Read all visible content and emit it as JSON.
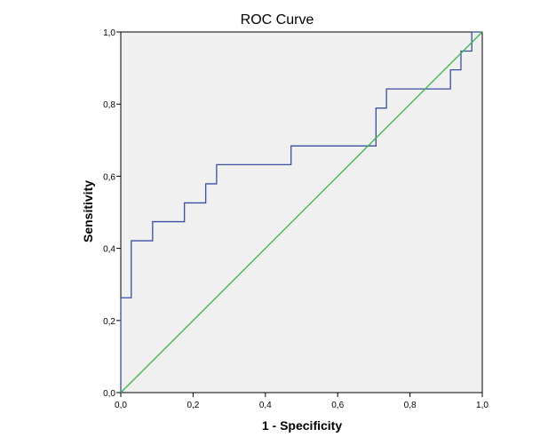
{
  "chart_data": {
    "type": "line",
    "title": "ROC Curve",
    "xlabel": "1 - Specificity",
    "ylabel": "Sensitivity",
    "xlim": [
      0,
      1
    ],
    "ylim": [
      0,
      1
    ],
    "x_ticks": [
      "0,0",
      "0,2",
      "0,4",
      "0,6",
      "0,8",
      "1,0"
    ],
    "y_ticks": [
      "0,0",
      "0,2",
      "0,4",
      "0,6",
      "0,8",
      "1,0"
    ],
    "grid": false,
    "legend": "none",
    "plot_background": "#f0f0f0",
    "series": [
      {
        "style": "step",
        "color": "#3a4fa0",
        "points": [
          [
            0.0,
            0.0
          ],
          [
            0.0,
            0.263
          ],
          [
            0.029,
            0.263
          ],
          [
            0.029,
            0.421
          ],
          [
            0.088,
            0.421
          ],
          [
            0.088,
            0.474
          ],
          [
            0.176,
            0.474
          ],
          [
            0.176,
            0.526
          ],
          [
            0.235,
            0.526
          ],
          [
            0.235,
            0.579
          ],
          [
            0.265,
            0.579
          ],
          [
            0.265,
            0.632
          ],
          [
            0.471,
            0.632
          ],
          [
            0.471,
            0.684
          ],
          [
            0.706,
            0.684
          ],
          [
            0.706,
            0.789
          ],
          [
            0.735,
            0.789
          ],
          [
            0.735,
            0.842
          ],
          [
            0.912,
            0.842
          ],
          [
            0.912,
            0.895
          ],
          [
            0.941,
            0.895
          ],
          [
            0.941,
            0.947
          ],
          [
            0.971,
            0.947
          ],
          [
            0.971,
            1.0
          ],
          [
            1.0,
            1.0
          ]
        ]
      },
      {
        "style": "line",
        "color": "#3cb44b",
        "points": [
          [
            0,
            0
          ],
          [
            1,
            1
          ]
        ]
      }
    ]
  }
}
